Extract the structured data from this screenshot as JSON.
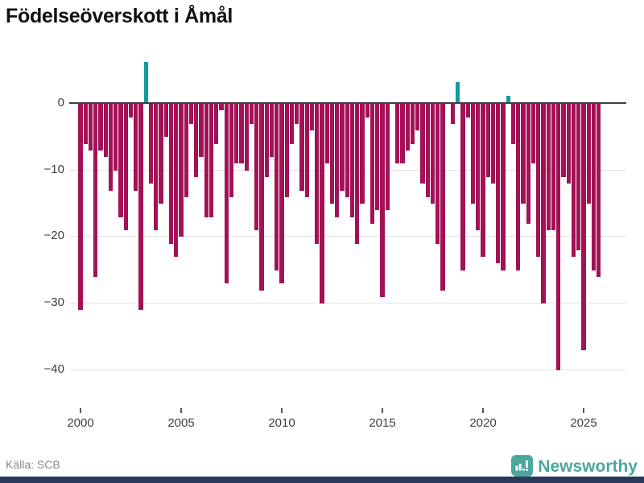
{
  "chart_data": {
    "type": "bar",
    "title": "Födelseöverskott i Åmål",
    "frequency": "quarterly",
    "x_tick_labels": [
      "2000",
      "2005",
      "2010",
      "2015",
      "2020",
      "2025"
    ],
    "x_tick_years": [
      2000,
      2005,
      2010,
      2015,
      2020,
      2025
    ],
    "y_tick_labels": [
      "0",
      "−10",
      "−20",
      "−30",
      "−40"
    ],
    "y_ticks": [
      0,
      -10,
      -20,
      -30,
      -40
    ],
    "ylim": [
      -42,
      7
    ],
    "grid": "horizontal",
    "legend": "none",
    "years": [
      {
        "year": 2000,
        "quarters": [
          -31,
          -6,
          -7,
          -26
        ]
      },
      {
        "year": 2001,
        "quarters": [
          -7,
          -8,
          -13,
          -10
        ]
      },
      {
        "year": 2002,
        "quarters": [
          -17,
          -19,
          -2,
          -13
        ]
      },
      {
        "year": 2003,
        "quarters": [
          -31,
          6,
          -12,
          -19
        ]
      },
      {
        "year": 2004,
        "quarters": [
          -15,
          -5,
          -21,
          -23
        ]
      },
      {
        "year": 2005,
        "quarters": [
          -20,
          -14,
          -3,
          -11
        ]
      },
      {
        "year": 2006,
        "quarters": [
          -8,
          -17,
          -17,
          -6
        ]
      },
      {
        "year": 2007,
        "quarters": [
          -1,
          -27,
          -14,
          -9
        ]
      },
      {
        "year": 2008,
        "quarters": [
          -9,
          -10,
          -3,
          -19
        ]
      },
      {
        "year": 2009,
        "quarters": [
          -28,
          -11,
          -8,
          -25
        ]
      },
      {
        "year": 2010,
        "quarters": [
          -27,
          -14,
          -6,
          -3
        ]
      },
      {
        "year": 2011,
        "quarters": [
          -13,
          -14,
          -4,
          -21
        ]
      },
      {
        "year": 2012,
        "quarters": [
          -30,
          -9,
          -15,
          -17
        ]
      },
      {
        "year": 2013,
        "quarters": [
          -13,
          -14,
          -17,
          -21
        ]
      },
      {
        "year": 2014,
        "quarters": [
          -15,
          -2,
          -18,
          -16
        ]
      },
      {
        "year": 2015,
        "quarters": [
          -29,
          -16,
          0,
          -9
        ]
      },
      {
        "year": 2016,
        "quarters": [
          -9,
          -7,
          -6,
          -4
        ]
      },
      {
        "year": 2017,
        "quarters": [
          -12,
          -14,
          -15,
          -21
        ]
      },
      {
        "year": 2018,
        "quarters": [
          -28,
          0,
          -3,
          3
        ]
      },
      {
        "year": 2019,
        "quarters": [
          -25,
          -2,
          -15,
          -19
        ]
      },
      {
        "year": 2020,
        "quarters": [
          -23,
          -11,
          -12,
          -24
        ]
      },
      {
        "year": 2021,
        "quarters": [
          -25,
          1,
          -6,
          -25
        ]
      },
      {
        "year": 2022,
        "quarters": [
          -15,
          -18,
          -9,
          -23
        ]
      },
      {
        "year": 2023,
        "quarters": [
          -30,
          -19,
          -19,
          -40
        ]
      },
      {
        "year": 2024,
        "quarters": [
          -11,
          -12,
          -23,
          -22
        ]
      },
      {
        "year": 2025,
        "quarters": [
          -37,
          -15,
          -25,
          -26
        ]
      }
    ]
  },
  "source_label": "Källa: SCB",
  "logo": {
    "text": "Newsworthy"
  },
  "colors": {
    "negative_bar": "#a31156",
    "positive_bar": "#109d9d",
    "logo_teal": "#4da79d",
    "bottom_strip": "#28395c",
    "gridline": "#e3e3e3",
    "zero_line": "#404040",
    "title_text": "#111111",
    "tick_text": "#3c3c3c",
    "source_text": "#8a8a8a"
  }
}
